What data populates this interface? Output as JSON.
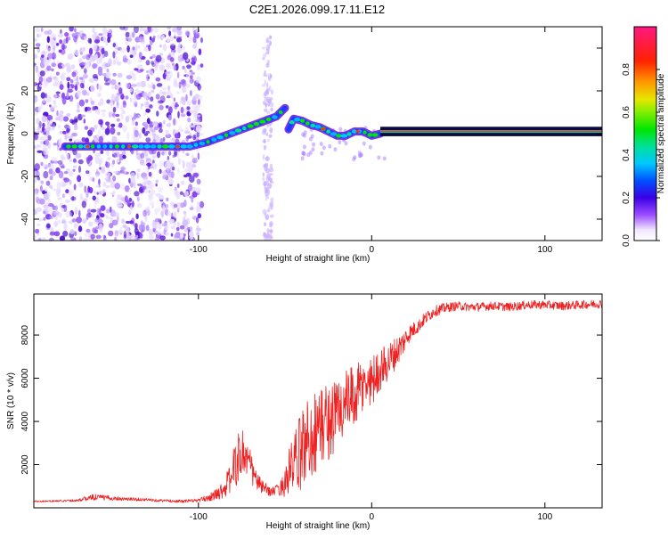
{
  "title": "C2E1.2026.099.17.11.E12",
  "chart_data": [
    {
      "type": "heatmap",
      "title": "C2E1.2026.099.17.11.E12",
      "xlabel": "Height of straight line (km)",
      "ylabel": "Frequency (Hz)",
      "xlim": [
        -195,
        133
      ],
      "ylim": [
        -50,
        50
      ],
      "xticks": [
        -100,
        0,
        100
      ],
      "xtick_labels": [
        "-100",
        "0",
        "100"
      ],
      "yticks": [
        -40,
        -20,
        0,
        20,
        40
      ],
      "ytick_labels": [
        "-40",
        "-20",
        "0",
        "20",
        "40"
      ],
      "colorbar": {
        "label": "Normalized spectral amplitude",
        "range": [
          0,
          1
        ],
        "ticks": [
          0,
          0.2,
          0.4,
          0.6,
          0.8
        ],
        "tick_labels": [
          "0.0",
          "0.2",
          "0.4",
          "0.6",
          "0.8"
        ]
      },
      "ridge": {
        "x": [
          -177,
          -165,
          -150,
          -135,
          -125,
          -115,
          -105,
          -95,
          -85,
          -75,
          -65,
          -55,
          -50,
          -48,
          -45,
          -40,
          -35,
          -30,
          -25,
          -20,
          -15,
          -10,
          -5,
          0,
          5,
          10,
          30,
          60,
          90,
          133
        ],
        "y": [
          -6,
          -6,
          -6,
          -6,
          -6,
          -6,
          -6,
          -4,
          -1,
          2,
          5,
          8,
          12,
          2,
          7,
          6,
          4,
          3,
          1,
          -1,
          -1,
          1,
          1,
          -1,
          0,
          1,
          1,
          1,
          1,
          1
        ]
      }
    },
    {
      "type": "line",
      "xlabel": "Height of straight line (km)",
      "ylabel": "SNR (10 * v/v)",
      "xlim": [
        -195,
        133
      ],
      "ylim": [
        0,
        9900
      ],
      "xticks": [
        -100,
        0,
        100
      ],
      "xtick_labels": [
        "-100",
        "0",
        "100"
      ],
      "yticks": [
        2000,
        4000,
        6000,
        8000
      ],
      "ytick_labels": [
        "2000",
        "4000",
        "6000",
        "8000"
      ],
      "series": [
        {
          "name": "SNR",
          "color": "#ee2222",
          "x": [
            -195,
            -180,
            -170,
            -160,
            -150,
            -140,
            -130,
            -120,
            -110,
            -100,
            -95,
            -90,
            -85,
            -82,
            -80,
            -78,
            -75,
            -72,
            -70,
            -68,
            -65,
            -62,
            -60,
            -58,
            -55,
            -52,
            -50,
            -48,
            -45,
            -42,
            -40,
            -38,
            -35,
            -33,
            -30,
            -28,
            -25,
            -22,
            -20,
            -18,
            -15,
            -12,
            -10,
            -8,
            -5,
            -3,
            0,
            2,
            4,
            6,
            8,
            10,
            12,
            15,
            18,
            20,
            22,
            25,
            28,
            30,
            33,
            36,
            40,
            45,
            50,
            55,
            60,
            70,
            80,
            90,
            100,
            110,
            120,
            133
          ],
          "y": [
            300,
            320,
            350,
            500,
            450,
            400,
            380,
            330,
            300,
            350,
            450,
            600,
            900,
            1300,
            1800,
            2100,
            2600,
            2300,
            1900,
            1500,
            1100,
            900,
            800,
            750,
            800,
            950,
            1200,
            1600,
            2000,
            2400,
            2800,
            3100,
            3300,
            3500,
            3700,
            3900,
            4000,
            4200,
            4400,
            4600,
            4800,
            5000,
            5100,
            5300,
            5600,
            5700,
            5900,
            6100,
            6300,
            6500,
            6600,
            6800,
            7000,
            7300,
            7600,
            7900,
            8100,
            8300,
            8500,
            8700,
            8900,
            9100,
            9200,
            9300,
            9350,
            9300,
            9300,
            9350,
            9300,
            9400,
            9400,
            9350,
            9400,
            9450
          ],
          "noise": [
            40,
            40,
            60,
            150,
            100,
            80,
            70,
            60,
            70,
            80,
            150,
            250,
            450,
            700,
            900,
            1100,
            1300,
            1000,
            800,
            600,
            400,
            300,
            250,
            200,
            250,
            400,
            700,
            1100,
            1400,
            1700,
            1900,
            2000,
            2000,
            2000,
            2000,
            1900,
            1800,
            1800,
            1800,
            1700,
            1600,
            1500,
            1500,
            1400,
            1300,
            1200,
            1200,
            1100,
            1000,
            1000,
            900,
            900,
            800,
            700,
            600,
            500,
            400,
            350,
            300,
            300,
            280,
            250,
            250,
            220,
            200,
            200,
            200,
            200,
            200,
            200,
            200,
            200,
            200,
            200
          ]
        }
      ]
    }
  ]
}
